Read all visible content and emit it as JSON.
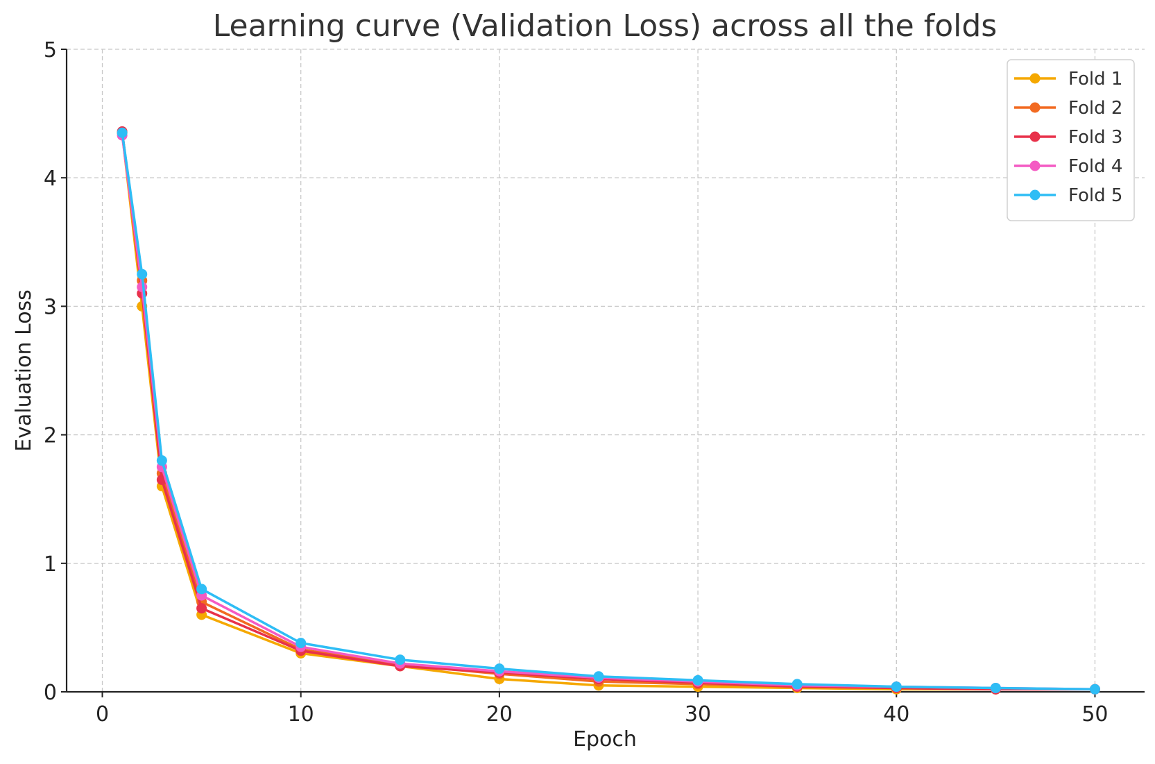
{
  "chart_data": {
    "type": "line",
    "title": "Learning curve (Validation Loss) across all the folds",
    "xlabel": "Epoch",
    "ylabel": "Evaluation Loss",
    "xlim": [
      -1.8,
      52.5
    ],
    "ylim": [
      0,
      5
    ],
    "xticks": [
      0,
      10,
      20,
      30,
      40,
      50
    ],
    "yticks": [
      0,
      1,
      2,
      3,
      4,
      5
    ],
    "grid": true,
    "legend_position": "top-right",
    "x": [
      1,
      2,
      3,
      5,
      10,
      15,
      20,
      25,
      30,
      35,
      40,
      45,
      50
    ],
    "series": [
      {
        "name": "Fold 1",
        "color": "#f5a800",
        "values": [
          4.35,
          3.0,
          1.6,
          0.6,
          0.3,
          0.2,
          0.1,
          0.05,
          0.04,
          0.03,
          0.02,
          0.02,
          0.02
        ]
      },
      {
        "name": "Fold 2",
        "color": "#f26a21",
        "values": [
          4.35,
          3.2,
          1.7,
          0.7,
          0.33,
          0.21,
          0.14,
          0.08,
          0.06,
          0.04,
          0.03,
          0.02,
          0.02
        ]
      },
      {
        "name": "Fold 3",
        "color": "#e8314a",
        "values": [
          4.36,
          3.1,
          1.65,
          0.65,
          0.32,
          0.2,
          0.15,
          0.1,
          0.07,
          0.04,
          0.03,
          0.02,
          0.02
        ]
      },
      {
        "name": "Fold 4",
        "color": "#f45ac3",
        "values": [
          4.33,
          3.15,
          1.75,
          0.75,
          0.35,
          0.22,
          0.16,
          0.11,
          0.08,
          0.05,
          0.04,
          0.03,
          0.02
        ]
      },
      {
        "name": "Fold 5",
        "color": "#2ebdf5",
        "values": [
          4.35,
          3.25,
          1.8,
          0.8,
          0.38,
          0.25,
          0.18,
          0.12,
          0.09,
          0.06,
          0.04,
          0.03,
          0.02
        ]
      }
    ]
  }
}
